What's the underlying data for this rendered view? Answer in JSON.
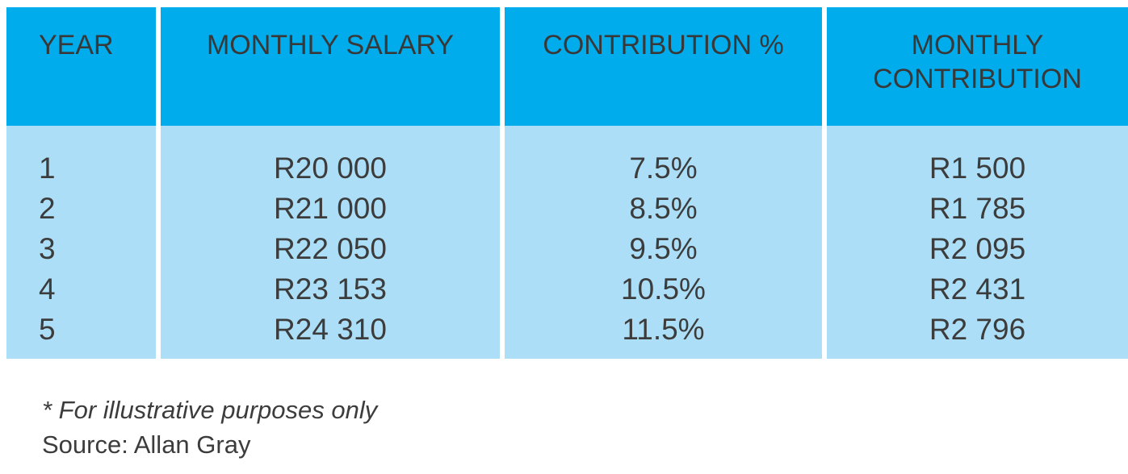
{
  "chart_data": {
    "type": "table",
    "title": "",
    "columns": [
      "YEAR",
      "MONTHLY SALARY",
      "CONTRIBUTION %",
      "MONTHLY CONTRIBUTION"
    ],
    "rows": [
      {
        "year": "1",
        "monthly_salary": "R20 000",
        "contribution_pct": "7.5%",
        "monthly_contribution": "R1 500"
      },
      {
        "year": "2",
        "monthly_salary": "R21 000",
        "contribution_pct": "8.5%",
        "monthly_contribution": "R1 785"
      },
      {
        "year": "3",
        "monthly_salary": "R22 050",
        "contribution_pct": "9.5%",
        "monthly_contribution": "R2 095"
      },
      {
        "year": "4",
        "monthly_salary": "R23 153",
        "contribution_pct": "10.5%",
        "monthly_contribution": "R2 431"
      },
      {
        "year": "5",
        "monthly_salary": "R24 310",
        "contribution_pct": "11.5%",
        "monthly_contribution": "R2 796"
      }
    ],
    "notes": [
      "* For illustrative purposes only",
      "Source: Allan Gray"
    ]
  },
  "table": {
    "headers": {
      "year": "YEAR",
      "monthly_salary": "MONTHLY SALARY",
      "contribution_pct": "CONTRIBUTION %",
      "monthly_contribution": "MONTHLY CONTRIBUTION"
    }
  },
  "footnote": "* For illustrative purposes only",
  "source": "Source: Allan Gray",
  "colors": {
    "header_bg": "#00ACEC",
    "body_bg": "#ACDFF7",
    "text": "#3C3C3C",
    "background": "#FFFFFF"
  }
}
